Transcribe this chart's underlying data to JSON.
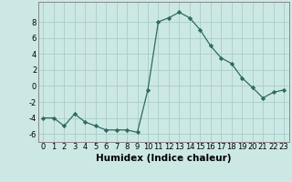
{
  "x": [
    0,
    1,
    2,
    3,
    4,
    5,
    6,
    7,
    8,
    9,
    10,
    11,
    12,
    13,
    14,
    15,
    16,
    17,
    18,
    19,
    20,
    21,
    22,
    23
  ],
  "y": [
    -4.0,
    -4.0,
    -5.0,
    -3.5,
    -4.5,
    -5.0,
    -5.5,
    -5.5,
    -5.5,
    -5.8,
    -0.5,
    8.0,
    8.5,
    9.2,
    8.5,
    7.0,
    5.0,
    3.5,
    2.8,
    1.0,
    -0.2,
    -1.5,
    -0.8,
    -0.5
  ],
  "xlabel": "Humidex (Indice chaleur)",
  "xlim": [
    -0.5,
    23.5
  ],
  "ylim": [
    -7,
    10.5
  ],
  "yticks": [
    -6,
    -4,
    -2,
    0,
    2,
    4,
    6,
    8
  ],
  "xticks": [
    0,
    1,
    2,
    3,
    4,
    5,
    6,
    7,
    8,
    9,
    10,
    11,
    12,
    13,
    14,
    15,
    16,
    17,
    18,
    19,
    20,
    21,
    22,
    23
  ],
  "line_color": "#2e6b5e",
  "marker_color": "#2e6b5e",
  "bg_color": "#cce8e4",
  "grid_color": "#aacccc",
  "label_fontsize": 7.5,
  "tick_fontsize": 6.0
}
